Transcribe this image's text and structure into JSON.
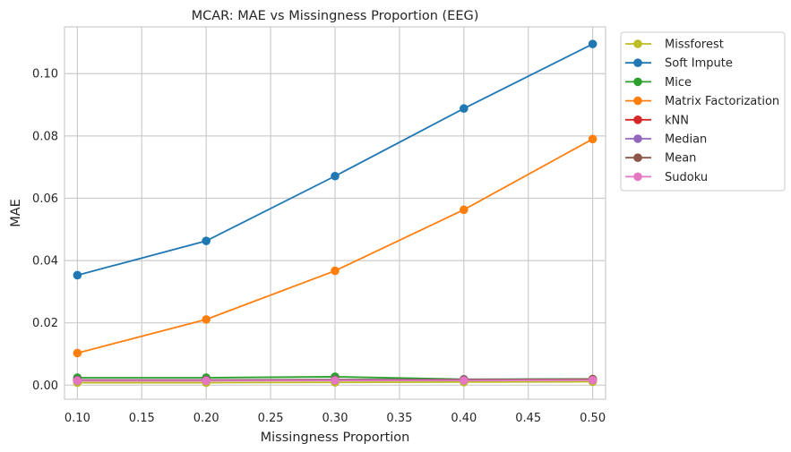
{
  "chart_data": {
    "type": "line",
    "title": "MCAR: MAE vs Missingness Proportion (EEG)",
    "xlabel": "Missingness Proportion",
    "ylabel": "MAE",
    "x": [
      0.1,
      0.2,
      0.3,
      0.4,
      0.5
    ],
    "xlim": [
      0.09,
      0.51
    ],
    "ylim": [
      -0.0045,
      0.115
    ],
    "xticks": [
      "0.10",
      "0.15",
      "0.20",
      "0.25",
      "0.30",
      "0.35",
      "0.40",
      "0.45",
      "0.50"
    ],
    "yticks": [
      "0.00",
      "0.02",
      "0.04",
      "0.06",
      "0.08",
      "0.10"
    ],
    "grid": true,
    "legend_position": "outside-right",
    "series": [
      {
        "name": "Missforest",
        "color": "#bcbd22",
        "values": [
          0.0008,
          0.0008,
          0.0009,
          0.001,
          0.0011
        ]
      },
      {
        "name": "Soft Impute",
        "color": "#1f77b4",
        "values": [
          0.0353,
          0.0463,
          0.0671,
          0.0888,
          0.1095
        ]
      },
      {
        "name": "Mice",
        "color": "#2ca02c",
        "values": [
          0.0024,
          0.0024,
          0.0027,
          0.0019,
          0.002
        ]
      },
      {
        "name": "Matrix Factorization",
        "color": "#ff7f0e",
        "values": [
          0.0103,
          0.0211,
          0.0367,
          0.0563,
          0.079
        ]
      },
      {
        "name": "kNN",
        "color": "#d62728",
        "values": [
          0.0015,
          0.0016,
          0.0017,
          0.0018,
          0.0019
        ]
      },
      {
        "name": "Median",
        "color": "#9467bd",
        "values": [
          0.0017,
          0.0017,
          0.0018,
          0.0018,
          0.0018
        ]
      },
      {
        "name": "Mean",
        "color": "#8c564b",
        "values": [
          0.0016,
          0.0016,
          0.0017,
          0.0017,
          0.0018
        ]
      },
      {
        "name": "Sudoku",
        "color": "#e377c2",
        "values": [
          0.0014,
          0.0014,
          0.0015,
          0.0015,
          0.0016
        ]
      }
    ]
  }
}
